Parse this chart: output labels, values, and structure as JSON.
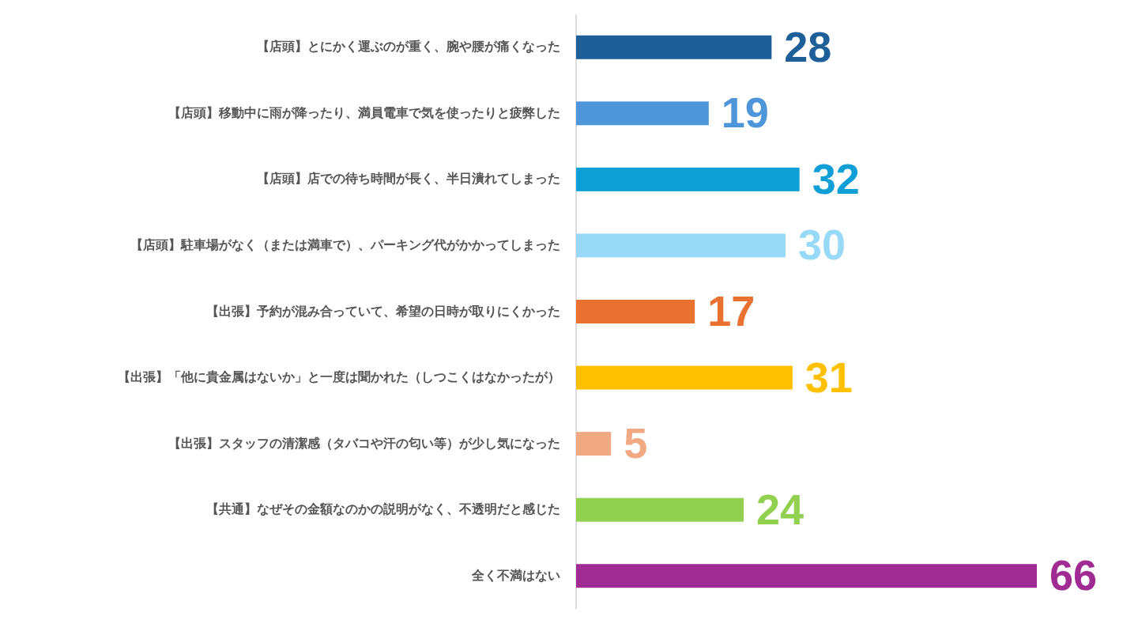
{
  "chart_data": {
    "type": "bar",
    "orientation": "horizontal",
    "data_labels": true,
    "categories": [
      "【店頭】とにかく運ぶのが重く、腕や腰が痛くなった",
      "【店頭】移動中に雨が降ったり、満員電車で気を使ったりと疲弊した",
      "【店頭】店での待ち時間が長く、半日潰れてしまった",
      "【店頭】駐車場がなく（または満車で）、パーキング代がかかってしまった",
      "【出張】予約が混み合っていて、希望の日時が取りにくかった",
      "【出張】「他に貴金属はないか」と一度は聞かれた（しつこくはなかったが）",
      "【出張】スタッフの清潔感（タバコや汗の匂い等）が少し気になった",
      "【共通】なぜその金額なのかの説明がなく、不透明だと感じた",
      "全く不満はない"
    ],
    "values": [
      28,
      19,
      32,
      30,
      17,
      31,
      5,
      24,
      66
    ],
    "colors": [
      "#1f5f99",
      "#4e95d9",
      "#0e9fd6",
      "#97d9f6",
      "#e97132",
      "#ffc000",
      "#f1a983",
      "#92d050",
      "#a02b93"
    ]
  }
}
